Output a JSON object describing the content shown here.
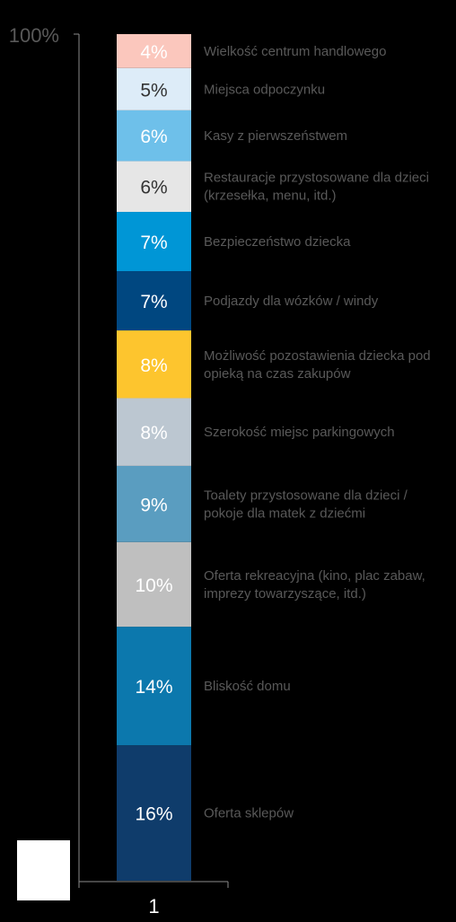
{
  "chart_data": {
    "type": "bar",
    "stacked": true,
    "categories": [
      "1"
    ],
    "ytick_top": "100%",
    "ylim": [
      0,
      100
    ],
    "series": [
      {
        "name": "Oferta sklepów",
        "value": 16,
        "label": "16%",
        "color": "#0f3c6b",
        "text_color": "#ffffff"
      },
      {
        "name": "Bliskość domu",
        "value": 14,
        "label": "14%",
        "color": "#0c78ad",
        "text_color": "#ffffff"
      },
      {
        "name": "Oferta rekreacyjna (kino, plac zabaw, imprezy towarzyszące, itd.)",
        "value": 10,
        "label": "10%",
        "color": "#bfbfbf",
        "text_color": "#ffffff"
      },
      {
        "name": "Toalety przystosowane dla dzieci / pokoje dla matek z dziećmi",
        "value": 9,
        "label": "9%",
        "color": "#5a9dc0",
        "text_color": "#ffffff"
      },
      {
        "name": "Szerokość miejsc parkingowych",
        "value": 8,
        "label": "8%",
        "color": "#bcc7d1",
        "text_color": "#ffffff"
      },
      {
        "name": "Możliwość pozostawienia dziecka pod opieką na czas zakupów",
        "value": 8,
        "label": "8%",
        "color": "#fdc52e",
        "text_color": "#ffffff"
      },
      {
        "name": "Podjazdy dla wózków / windy",
        "value": 7,
        "label": "7%",
        "color": "#004780",
        "text_color": "#ffffff"
      },
      {
        "name": "Bezpieczeństwo dziecka",
        "value": 7,
        "label": "7%",
        "color": "#0096d6",
        "text_color": "#ffffff"
      },
      {
        "name": "Restauracje przystosowane dla dzieci (krzesełka, menu, itd.)",
        "value": 6,
        "label": "6%",
        "color": "#e6e6e6",
        "text_color": "#333333"
      },
      {
        "name": "Kasy z pierwszeństwem",
        "value": 6,
        "label": "6%",
        "color": "#6ec0ea",
        "text_color": "#ffffff"
      },
      {
        "name": "Miejsca odpoczynku",
        "value": 5,
        "label": "5%",
        "color": "#ddecf8",
        "text_color": "#333333"
      },
      {
        "name": "Wielkość centrum handlowego",
        "value": 4,
        "label": "4%",
        "color": "#fbc7bd",
        "text_color": "#ffffff"
      }
    ],
    "colors": {
      "axis": "#8c8c8c",
      "tick_label": "#595959",
      "legend_text": "#595959",
      "category_label": "#ffffff"
    }
  }
}
